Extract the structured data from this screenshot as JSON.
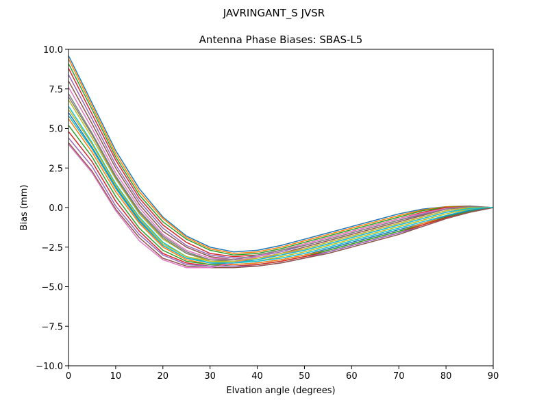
{
  "chart_data": {
    "type": "line",
    "suptitle": "JAVRINGANT_S    JVSR",
    "title": "Antenna Phase Biases: SBAS-L5",
    "xlabel": "Elvation angle (degrees)",
    "ylabel": "Bias (mm)",
    "xlim": [
      0,
      90
    ],
    "ylim": [
      -10,
      10
    ],
    "xticks": [
      "0",
      "10",
      "20",
      "30",
      "40",
      "50",
      "60",
      "70",
      "80",
      "90"
    ],
    "yticks": [
      "10.0",
      "7.5",
      "5.0",
      "2.5",
      "0.0",
      "−2.5",
      "−5.0",
      "−7.5",
      "−10.0"
    ],
    "x": [
      0,
      5,
      10,
      15,
      20,
      25,
      30,
      35,
      40,
      45,
      50,
      55,
      60,
      65,
      70,
      75,
      80,
      85,
      90
    ],
    "grid": false,
    "series_colors": [
      "#1f77b4",
      "#ff7f0e",
      "#2ca02c",
      "#d62728",
      "#9467bd",
      "#8c564b",
      "#e377c2",
      "#7f7f7f",
      "#bcbd22",
      "#17becf"
    ],
    "series": [
      {
        "values": [
          9.6,
          6.6,
          3.6,
          1.2,
          -0.6,
          -1.8,
          -2.5,
          -2.8,
          -2.7,
          -2.4,
          -2.0,
          -1.6,
          -1.2,
          -0.8,
          -0.4,
          -0.1,
          0.05,
          0.1,
          0.0
        ]
      },
      {
        "values": [
          9.4,
          6.4,
          3.4,
          1.0,
          -0.7,
          -1.9,
          -2.6,
          -2.9,
          -2.8,
          -2.5,
          -2.1,
          -1.7,
          -1.3,
          -0.9,
          -0.5,
          -0.15,
          0.05,
          0.08,
          0.0
        ]
      },
      {
        "values": [
          9.1,
          6.2,
          3.2,
          0.8,
          -0.9,
          -2.0,
          -2.7,
          -3.0,
          -2.9,
          -2.6,
          -2.2,
          -1.8,
          -1.4,
          -1.0,
          -0.6,
          -0.2,
          0.02,
          0.06,
          0.0
        ]
      },
      {
        "values": [
          8.8,
          5.9,
          3.0,
          0.6,
          -1.1,
          -2.2,
          -2.9,
          -3.1,
          -3.0,
          -2.7,
          -2.3,
          -1.9,
          -1.5,
          -1.1,
          -0.7,
          -0.3,
          0.0,
          0.05,
          0.0
        ]
      },
      {
        "values": [
          8.4,
          5.6,
          2.7,
          0.4,
          -1.3,
          -2.4,
          -3.0,
          -3.2,
          -3.1,
          -2.8,
          -2.4,
          -2.0,
          -1.6,
          -1.2,
          -0.8,
          -0.4,
          -0.05,
          0.04,
          0.0
        ]
      },
      {
        "values": [
          8.0,
          5.3,
          2.5,
          0.2,
          -1.5,
          -2.5,
          -3.1,
          -3.3,
          -3.2,
          -2.9,
          -2.5,
          -2.1,
          -1.7,
          -1.3,
          -0.9,
          -0.5,
          -0.1,
          0.03,
          0.0
        ]
      },
      {
        "values": [
          7.6,
          5.0,
          2.2,
          0.0,
          -1.7,
          -2.7,
          -3.2,
          -3.3,
          -3.2,
          -3.0,
          -2.6,
          -2.2,
          -1.8,
          -1.4,
          -1.0,
          -0.6,
          -0.2,
          0.02,
          0.0
        ]
      },
      {
        "values": [
          7.2,
          4.7,
          2.0,
          -0.2,
          -1.8,
          -2.8,
          -3.3,
          -3.4,
          -3.3,
          -3.0,
          -2.7,
          -2.3,
          -1.9,
          -1.5,
          -1.1,
          -0.7,
          -0.3,
          -0.05,
          0.0
        ]
      },
      {
        "values": [
          6.8,
          4.4,
          1.8,
          -0.4,
          -2.0,
          -2.9,
          -3.4,
          -3.5,
          -3.4,
          -3.1,
          -2.8,
          -2.4,
          -2.0,
          -1.6,
          -1.2,
          -0.8,
          -0.4,
          -0.1,
          0.0
        ]
      },
      {
        "values": [
          6.4,
          4.1,
          1.5,
          -0.6,
          -2.2,
          -3.1,
          -3.5,
          -3.5,
          -3.4,
          -3.2,
          -2.9,
          -2.5,
          -2.1,
          -1.7,
          -1.3,
          -0.9,
          -0.5,
          -0.15,
          0.0
        ]
      },
      {
        "values": [
          6.0,
          3.8,
          1.3,
          -0.8,
          -2.4,
          -3.2,
          -3.5,
          -3.6,
          -3.5,
          -3.3,
          -3.0,
          -2.6,
          -2.2,
          -1.8,
          -1.4,
          -1.0,
          -0.55,
          -0.2,
          0.0
        ]
      },
      {
        "values": [
          5.6,
          3.5,
          1.0,
          -1.0,
          -2.5,
          -3.3,
          -3.6,
          -3.6,
          -3.5,
          -3.3,
          -3.0,
          -2.7,
          -2.3,
          -1.9,
          -1.5,
          -1.0,
          -0.6,
          -0.25,
          0.0
        ]
      },
      {
        "values": [
          5.2,
          3.2,
          0.7,
          -1.3,
          -2.7,
          -3.4,
          -3.6,
          -3.7,
          -3.6,
          -3.4,
          -3.1,
          -2.7,
          -2.3,
          -1.9,
          -1.5,
          -1.1,
          -0.6,
          -0.25,
          0.0
        ]
      },
      {
        "values": [
          4.8,
          2.9,
          0.4,
          -1.5,
          -2.9,
          -3.5,
          -3.7,
          -3.7,
          -3.6,
          -3.4,
          -3.1,
          -2.8,
          -2.4,
          -2.0,
          -1.6,
          -1.1,
          -0.65,
          -0.3,
          0.0
        ]
      },
      {
        "values": [
          4.4,
          2.6,
          0.1,
          -1.7,
          -3.0,
          -3.6,
          -3.7,
          -3.7,
          -3.7,
          -3.5,
          -3.2,
          -2.8,
          -2.4,
          -2.0,
          -1.6,
          -1.2,
          -0.7,
          -0.3,
          0.0
        ]
      },
      {
        "values": [
          4.1,
          2.3,
          -0.1,
          -1.9,
          -3.2,
          -3.7,
          -3.8,
          -3.8,
          -3.7,
          -3.5,
          -3.2,
          -2.9,
          -2.5,
          -2.1,
          -1.7,
          -1.2,
          -0.7,
          -0.3,
          0.0
        ]
      },
      {
        "values": [
          4.0,
          2.2,
          -0.2,
          -2.1,
          -3.3,
          -3.8,
          -3.8,
          -3.5,
          -3.1,
          -2.7,
          -2.3,
          -1.9,
          -1.5,
          -1.1,
          -0.7,
          -0.35,
          -0.05,
          0.05,
          0.0
        ]
      },
      {
        "values": [
          7.0,
          4.6,
          1.9,
          -0.3,
          -1.9,
          -2.9,
          -3.3,
          -3.3,
          -3.0,
          -2.7,
          -2.4,
          -2.0,
          -1.6,
          -1.2,
          -0.8,
          -0.45,
          -0.1,
          0.05,
          0.0
        ]
      },
      {
        "values": [
          6.2,
          4.0,
          1.4,
          -0.7,
          -2.3,
          -3.1,
          -3.4,
          -3.4,
          -3.2,
          -2.9,
          -2.6,
          -2.2,
          -1.8,
          -1.4,
          -1.0,
          -0.6,
          -0.2,
          0.0,
          0.0
        ]
      },
      {
        "values": [
          5.8,
          3.7,
          1.2,
          -0.9,
          -2.4,
          -3.2,
          -3.5,
          -3.5,
          -3.3,
          -3.0,
          -2.7,
          -2.3,
          -1.9,
          -1.5,
          -1.1,
          -0.7,
          -0.3,
          -0.05,
          0.0
        ]
      }
    ]
  }
}
